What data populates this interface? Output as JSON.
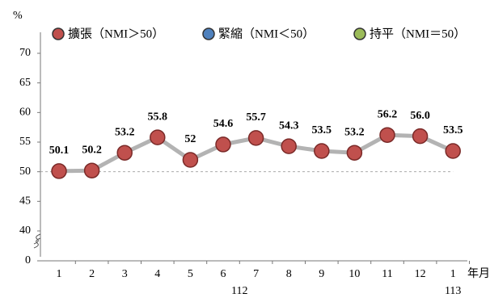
{
  "chart_data": {
    "type": "line",
    "y_label": "%",
    "x_label": "年月",
    "categories": [
      "1",
      "2",
      "3",
      "4",
      "5",
      "6",
      "7",
      "8",
      "9",
      "10",
      "11",
      "12",
      "1"
    ],
    "groups": [
      {
        "label": "112",
        "first": 0,
        "last": 11
      },
      {
        "label": "113",
        "first": 12,
        "last": 12
      }
    ],
    "series": [
      {
        "name": "擴張（NMI＞50）",
        "color": "#c0504d",
        "values": [
          50.1,
          50.2,
          53.2,
          55.8,
          52,
          54.6,
          55.7,
          54.3,
          53.5,
          53.2,
          56.2,
          56.0,
          53.5
        ],
        "value_labels": [
          "50.1",
          "50.2",
          "53.2",
          "55.8",
          "52",
          "54.6",
          "55.7",
          "54.3",
          "53.5",
          "53.2",
          "56.2",
          "56.0",
          "53.5"
        ]
      }
    ],
    "legend": [
      {
        "name": "擴張（NMI＞50）",
        "color": "#c0504d"
      },
      {
        "name": "緊縮（NMI＜50）",
        "color": "#4f81bd"
      },
      {
        "name": "持平（NMI＝50）",
        "color": "#9bbb59"
      }
    ],
    "line_color": "#b3b3b3",
    "reference_line": 50,
    "ylim": [
      0,
      70
    ],
    "y_break": [
      0,
      40
    ],
    "yticks": [
      0,
      40,
      45,
      50,
      55,
      60,
      65,
      70
    ]
  }
}
